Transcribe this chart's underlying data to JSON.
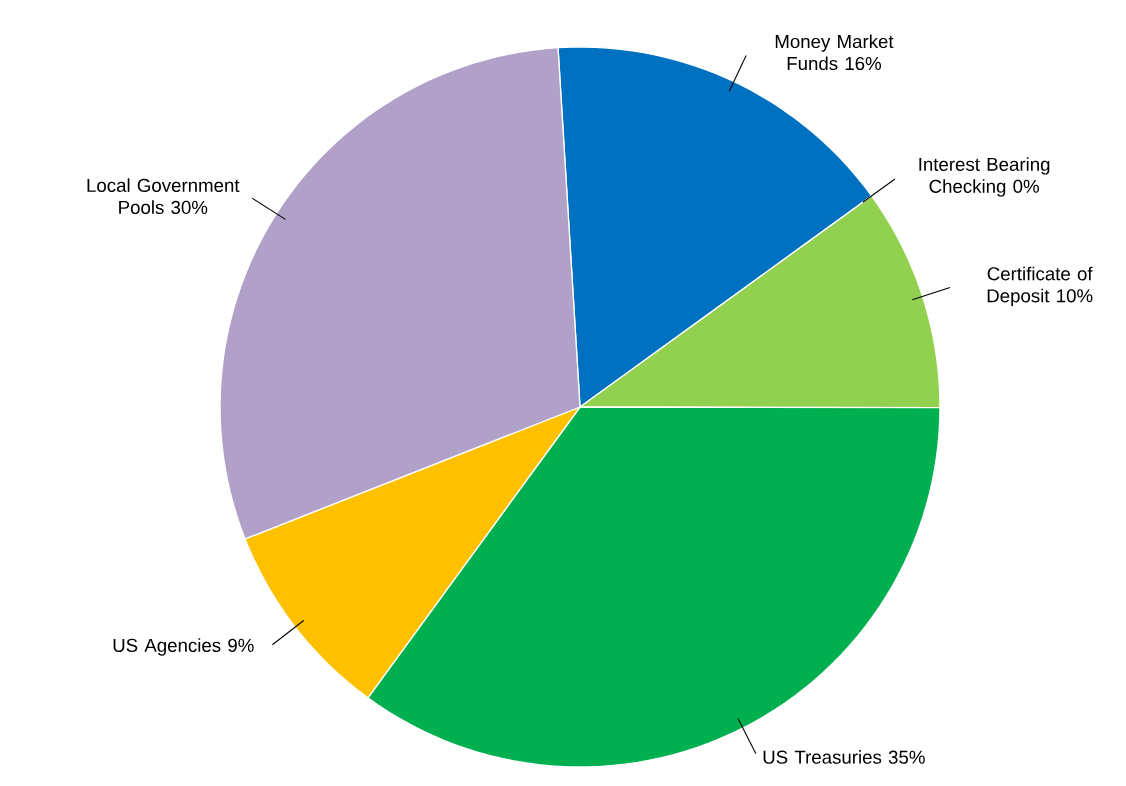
{
  "chart_data": {
    "type": "pie",
    "categories": [
      "Money Market Funds",
      "Interest Bearing Checking",
      "Certificate of Deposit",
      "US Treasuries",
      "US Agencies",
      "Local Government Pools"
    ],
    "values": [
      16,
      0,
      10,
      35,
      9,
      30
    ],
    "value_labels": [
      "16%",
      "0%",
      "10%",
      "35%",
      "9%",
      "30%"
    ],
    "colors": [
      "#0070c0",
      "#c00000",
      "#92d050",
      "#00b050",
      "#ffc000",
      "#b1a0c7"
    ]
  }
}
